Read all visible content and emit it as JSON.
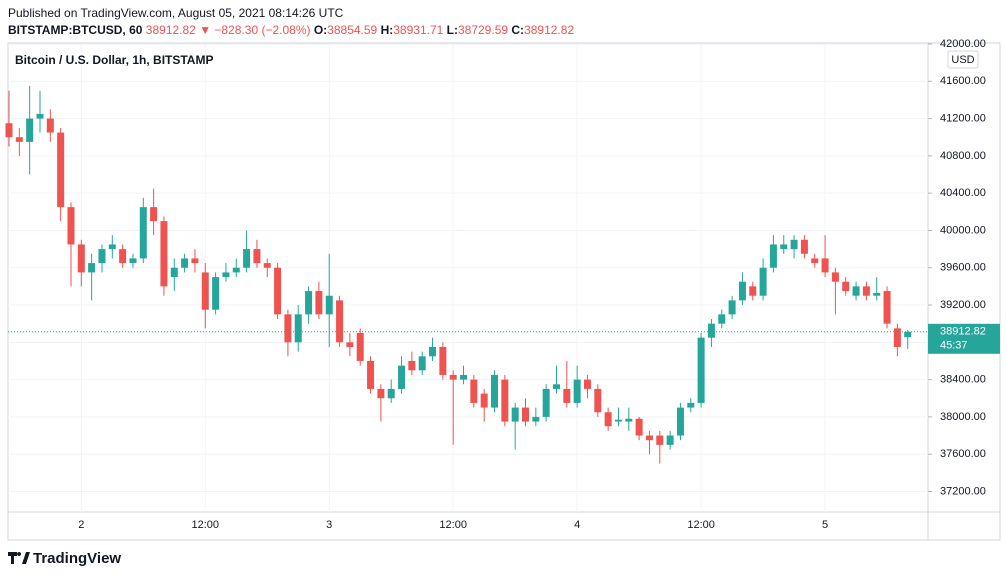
{
  "header": {
    "published": "Published on TradingView.com, August 05, 2021 08:14:26 UTC",
    "symbol": "BITSTAMP:BTCUSD, 60",
    "price": "38912.82",
    "change": "▼ −828.30 (−2.08%)",
    "ohlc": [
      {
        "label": "O:",
        "value": "38854.59"
      },
      {
        "label": "H:",
        "value": "38931.71"
      },
      {
        "label": "L:",
        "value": "38729.59"
      },
      {
        "label": "C:",
        "value": "38912.82"
      }
    ]
  },
  "footer": {
    "logo": "TradingView"
  },
  "chart_data": {
    "type": "candlestick",
    "title": "Bitcoin / U.S. Dollar, 1h, BITSTAMP",
    "currency": "USD",
    "countdown": "45:37",
    "up_color": "#26a69a",
    "down_color": "#ef5350",
    "grid": true,
    "categories": [
      null,
      null,
      null,
      null,
      null,
      null,
      null,
      "2",
      null,
      null,
      null,
      null,
      null,
      null,
      null,
      null,
      null,
      null,
      null,
      "12:00",
      null,
      null,
      null,
      null,
      null,
      null,
      null,
      null,
      null,
      null,
      null,
      "3",
      null,
      null,
      null,
      null,
      null,
      null,
      null,
      null,
      null,
      null,
      null,
      "12:00",
      null,
      null,
      null,
      null,
      null,
      null,
      null,
      null,
      null,
      null,
      null,
      "4",
      null,
      null,
      null,
      null,
      null,
      null,
      null,
      null,
      null,
      null,
      null,
      "12:00",
      null,
      null,
      null,
      null,
      null,
      null,
      null,
      null,
      null,
      null,
      null,
      "5",
      null,
      null,
      null,
      null,
      null,
      null,
      null,
      null
    ],
    "open": [
      41150,
      41000,
      40950,
      41200,
      41200,
      41050,
      40250,
      39850,
      39550,
      39650,
      39800,
      39800,
      39650,
      39700,
      40250,
      40100,
      39500,
      39600,
      39700,
      39550,
      39150,
      39500,
      39550,
      39600,
      39800,
      39650,
      39600,
      39100,
      38800,
      39100,
      39350,
      39100,
      39250,
      38800,
      38900,
      38600,
      38300,
      38200,
      38300,
      38600,
      38500,
      38650,
      38750,
      38450,
      38400,
      38400,
      38250,
      38100,
      38400,
      37950,
      38100,
      37950,
      38000,
      38300,
      38300,
      38150,
      38400,
      38300,
      38050,
      37950,
      37950,
      37980,
      37800,
      37800,
      37700,
      37800,
      38100,
      38150,
      38850,
      39000,
      39100,
      39250,
      39400,
      39300,
      39600,
      39800,
      39800,
      39900,
      39700,
      39700,
      39550,
      39450,
      39300,
      39400,
      39300,
      39350,
      38950,
      38854.59
    ],
    "high": [
      41500,
      41100,
      41550,
      41500,
      41300,
      41100,
      40300,
      39900,
      39750,
      39850,
      39950,
      39850,
      39750,
      40350,
      40450,
      40150,
      39700,
      39750,
      39800,
      39650,
      39550,
      39650,
      39700,
      40000,
      39900,
      39700,
      39650,
      39150,
      39200,
      39400,
      39450,
      39750,
      39300,
      38900,
      38950,
      38650,
      38350,
      38400,
      38650,
      38700,
      38700,
      38850,
      38800,
      38500,
      38550,
      38450,
      38300,
      38500,
      38450,
      38150,
      38200,
      38100,
      38350,
      38550,
      38600,
      38550,
      38450,
      38350,
      38100,
      38100,
      38100,
      38000,
      37850,
      37850,
      37850,
      38150,
      38200,
      38900,
      39050,
      39150,
      39300,
      39550,
      39450,
      39700,
      39950,
      39950,
      39950,
      39950,
      39750,
      39950,
      39600,
      39500,
      39450,
      39450,
      39500,
      39400,
      39000,
      38931.71
    ],
    "low": [
      40900,
      40800,
      40600,
      41050,
      40950,
      40100,
      39400,
      39400,
      39250,
      39550,
      39700,
      39600,
      39600,
      39650,
      39950,
      39300,
      39350,
      39550,
      39550,
      38950,
      39100,
      39450,
      39500,
      39550,
      39600,
      39500,
      39050,
      38650,
      38700,
      39000,
      39050,
      38750,
      38750,
      38650,
      38550,
      38250,
      37950,
      38150,
      38250,
      38450,
      38450,
      38600,
      38400,
      37700,
      38350,
      38100,
      37950,
      38050,
      37900,
      37650,
      37900,
      37900,
      37950,
      38250,
      38100,
      38100,
      38200,
      38000,
      37850,
      37900,
      37850,
      37750,
      37600,
      37500,
      37650,
      37750,
      38050,
      38100,
      38750,
      38950,
      39050,
      39200,
      39250,
      39250,
      39550,
      39750,
      39700,
      39700,
      39600,
      39500,
      39100,
      39300,
      39250,
      39250,
      39250,
      38950,
      38650,
      38729.59
    ],
    "close": [
      41000,
      40950,
      41200,
      41250,
      41050,
      40250,
      39850,
      39550,
      39650,
      39800,
      39850,
      39650,
      39700,
      40250,
      40100,
      39400,
      39600,
      39700,
      39650,
      39150,
      39500,
      39550,
      39600,
      39800,
      39650,
      39600,
      39100,
      38800,
      39100,
      39350,
      39100,
      39300,
      38800,
      38750,
      38600,
      38300,
      38200,
      38300,
      38550,
      38500,
      38650,
      38750,
      38450,
      38400,
      38450,
      38150,
      38100,
      38450,
      37950,
      38100,
      37950,
      38000,
      38300,
      38350,
      38150,
      38400,
      38300,
      38050,
      37900,
      37970,
      37980,
      37800,
      37750,
      37700,
      37800,
      38100,
      38150,
      38850,
      39000,
      39100,
      39250,
      39450,
      39300,
      39600,
      39850,
      39850,
      39900,
      39750,
      39650,
      39550,
      39450,
      39350,
      39400,
      39300,
      39330,
      39000,
      38750,
      38912.82
    ],
    "ylim": [
      36980,
      42000
    ],
    "yticks": [
      {
        "value": 37200,
        "label": "37200.00"
      },
      {
        "value": 37600,
        "label": "37600.00"
      },
      {
        "value": 38000,
        "label": "38000.00"
      },
      {
        "value": 38400,
        "label": "38400.00"
      },
      {
        "value": 38800,
        "label": "38800.00"
      },
      {
        "value": 39200,
        "label": "39200.00"
      },
      {
        "value": 39600,
        "label": "39600.00"
      },
      {
        "value": 40000,
        "label": "40000.00"
      },
      {
        "value": 40400,
        "label": "40400.00"
      },
      {
        "value": 40800,
        "label": "40800.00"
      },
      {
        "value": 41200,
        "label": "41200.00"
      },
      {
        "value": 41600,
        "label": "41600.00"
      },
      {
        "value": 42000,
        "label": "42000.00"
      }
    ]
  }
}
